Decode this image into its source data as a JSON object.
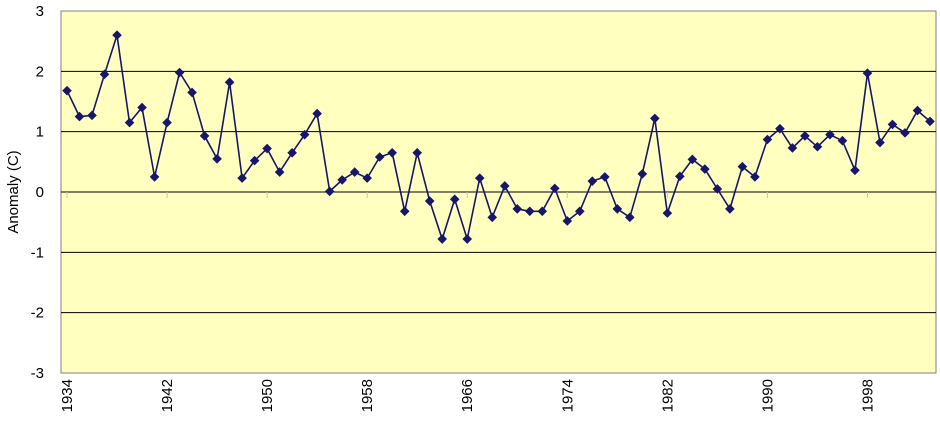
{
  "chart_data": {
    "type": "line",
    "title": "",
    "xlabel": "",
    "ylabel": "Anomaly (C)",
    "ylim": [
      -3,
      3
    ],
    "xlim": [
      1934,
      2003
    ],
    "yticks": [
      "3",
      "2",
      "1",
      "0",
      "-1",
      "-2",
      "-3"
    ],
    "xticks": [
      "1934",
      "1942",
      "1950",
      "1958",
      "1966",
      "1974",
      "1982",
      "1990",
      "1998"
    ],
    "grid": true,
    "legend": "none",
    "colors": {
      "plot_background": "#FFFFC0",
      "series": "#16166B",
      "gridline": "#000000"
    },
    "x": [
      1934,
      1935,
      1936,
      1937,
      1938,
      1939,
      1940,
      1941,
      1942,
      1943,
      1944,
      1945,
      1946,
      1947,
      1948,
      1949,
      1950,
      1951,
      1952,
      1953,
      1954,
      1955,
      1956,
      1957,
      1958,
      1959,
      1960,
      1961,
      1962,
      1963,
      1964,
      1965,
      1966,
      1967,
      1968,
      1969,
      1970,
      1971,
      1972,
      1973,
      1974,
      1975,
      1976,
      1977,
      1978,
      1979,
      1980,
      1981,
      1982,
      1983,
      1984,
      1985,
      1986,
      1987,
      1988,
      1989,
      1990,
      1991,
      1992,
      1993,
      1994,
      1995,
      1996,
      1997,
      1998,
      1999,
      2000,
      2001,
      2002,
      2003
    ],
    "y": [
      1.68,
      1.25,
      1.27,
      1.95,
      2.6,
      1.15,
      1.4,
      0.25,
      1.15,
      1.98,
      1.65,
      0.93,
      0.55,
      1.82,
      0.23,
      0.52,
      0.72,
      0.33,
      0.65,
      0.95,
      1.3,
      0.01,
      0.2,
      0.33,
      0.23,
      0.58,
      0.65,
      -0.32,
      0.65,
      -0.15,
      -0.78,
      -0.12,
      -0.78,
      0.23,
      -0.42,
      0.1,
      -0.28,
      -0.32,
      -0.32,
      0.06,
      -0.48,
      -0.32,
      0.18,
      0.25,
      -0.28,
      -0.42,
      0.3,
      1.22,
      -0.35,
      0.26,
      0.54,
      0.38,
      0.05,
      -0.28,
      0.42,
      0.25,
      0.87,
      1.05,
      0.73,
      0.93,
      0.75,
      0.95,
      0.85,
      0.36,
      1.97,
      0.82,
      1.12,
      0.98,
      1.35,
      1.17
    ]
  }
}
